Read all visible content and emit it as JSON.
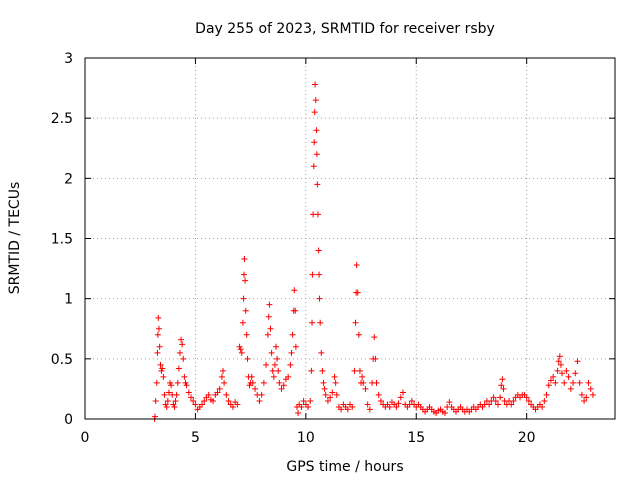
{
  "chart_data": {
    "type": "scatter",
    "title": "Day 255 of 2023, SRMTID for receiver rsby",
    "xlabel": "GPS time / hours",
    "ylabel": "SRMTID / TECUs",
    "xlim": [
      0,
      24
    ],
    "ylim": [
      0,
      3
    ],
    "x_ticks": [
      0,
      5,
      10,
      15,
      20
    ],
    "x_tick_labels": [
      "0",
      "5",
      "10",
      "15",
      "20"
    ],
    "y_ticks": [
      0,
      0.5,
      1,
      1.5,
      2,
      2.5,
      3
    ],
    "y_tick_labels": [
      "0",
      "0.5",
      "1",
      "1.5",
      "2",
      "2.5",
      "3"
    ],
    "grid": true,
    "marker": "plus",
    "series": [
      {
        "name": "SRMTID",
        "color": "#ff0000",
        "points": [
          [
            3.15,
            0.0
          ],
          [
            3.17,
            0.02
          ],
          [
            3.2,
            0.15
          ],
          [
            3.25,
            0.3
          ],
          [
            3.28,
            0.55
          ],
          [
            3.3,
            0.7
          ],
          [
            3.32,
            0.84
          ],
          [
            3.35,
            0.75
          ],
          [
            3.38,
            0.6
          ],
          [
            3.42,
            0.45
          ],
          [
            3.46,
            0.4
          ],
          [
            3.5,
            0.42
          ],
          [
            3.55,
            0.35
          ],
          [
            3.6,
            0.2
          ],
          [
            3.65,
            0.12
          ],
          [
            3.7,
            0.1
          ],
          [
            3.75,
            0.15
          ],
          [
            3.8,
            0.22
          ],
          [
            3.85,
            0.3
          ],
          [
            3.9,
            0.28
          ],
          [
            3.95,
            0.2
          ],
          [
            4.0,
            0.12
          ],
          [
            4.05,
            0.1
          ],
          [
            4.1,
            0.15
          ],
          [
            4.15,
            0.2
          ],
          [
            4.2,
            0.3
          ],
          [
            4.25,
            0.42
          ],
          [
            4.3,
            0.55
          ],
          [
            4.35,
            0.66
          ],
          [
            4.4,
            0.62
          ],
          [
            4.45,
            0.5
          ],
          [
            4.5,
            0.35
          ],
          [
            4.55,
            0.3
          ],
          [
            4.6,
            0.28
          ],
          [
            4.7,
            0.22
          ],
          [
            4.8,
            0.18
          ],
          [
            4.9,
            0.15
          ],
          [
            5.0,
            0.12
          ],
          [
            5.1,
            0.08
          ],
          [
            5.2,
            0.1
          ],
          [
            5.3,
            0.12
          ],
          [
            5.4,
            0.15
          ],
          [
            5.5,
            0.18
          ],
          [
            5.6,
            0.2
          ],
          [
            5.7,
            0.16
          ],
          [
            5.8,
            0.15
          ],
          [
            5.9,
            0.2
          ],
          [
            6.0,
            0.22
          ],
          [
            6.1,
            0.25
          ],
          [
            6.2,
            0.35
          ],
          [
            6.25,
            0.4
          ],
          [
            6.3,
            0.3
          ],
          [
            6.4,
            0.2
          ],
          [
            6.5,
            0.15
          ],
          [
            6.6,
            0.12
          ],
          [
            6.7,
            0.1
          ],
          [
            6.8,
            0.14
          ],
          [
            6.9,
            0.12
          ],
          [
            7.0,
            0.6
          ],
          [
            7.05,
            0.58
          ],
          [
            7.1,
            0.55
          ],
          [
            7.15,
            0.8
          ],
          [
            7.18,
            1.0
          ],
          [
            7.2,
            1.2
          ],
          [
            7.22,
            1.33
          ],
          [
            7.25,
            1.15
          ],
          [
            7.28,
            0.9
          ],
          [
            7.32,
            0.7
          ],
          [
            7.36,
            0.5
          ],
          [
            7.4,
            0.35
          ],
          [
            7.45,
            0.28
          ],
          [
            7.5,
            0.3
          ],
          [
            7.55,
            0.35
          ],
          [
            7.6,
            0.3
          ],
          [
            7.7,
            0.25
          ],
          [
            7.8,
            0.2
          ],
          [
            7.9,
            0.15
          ],
          [
            8.0,
            0.2
          ],
          [
            8.1,
            0.3
          ],
          [
            8.2,
            0.45
          ],
          [
            8.28,
            0.7
          ],
          [
            8.32,
            0.85
          ],
          [
            8.35,
            0.95
          ],
          [
            8.4,
            0.75
          ],
          [
            8.45,
            0.55
          ],
          [
            8.5,
            0.4
          ],
          [
            8.55,
            0.35
          ],
          [
            8.6,
            0.45
          ],
          [
            8.65,
            0.6
          ],
          [
            8.7,
            0.5
          ],
          [
            8.75,
            0.4
          ],
          [
            8.8,
            0.3
          ],
          [
            8.9,
            0.25
          ],
          [
            9.0,
            0.28
          ],
          [
            9.1,
            0.33
          ],
          [
            9.2,
            0.35
          ],
          [
            9.3,
            0.45
          ],
          [
            9.35,
            0.55
          ],
          [
            9.4,
            0.7
          ],
          [
            9.45,
            0.9
          ],
          [
            9.48,
            1.07
          ],
          [
            9.52,
            0.9
          ],
          [
            9.55,
            0.6
          ],
          [
            9.6,
            0.1
          ],
          [
            9.65,
            0.05
          ],
          [
            9.7,
            0.12
          ],
          [
            9.8,
            0.1
          ],
          [
            9.9,
            0.15
          ],
          [
            10.0,
            0.12
          ],
          [
            10.1,
            0.1
          ],
          [
            10.2,
            0.15
          ],
          [
            10.25,
            0.4
          ],
          [
            10.28,
            0.8
          ],
          [
            10.3,
            1.2
          ],
          [
            10.33,
            1.7
          ],
          [
            10.36,
            2.1
          ],
          [
            10.38,
            2.3
          ],
          [
            10.4,
            2.55
          ],
          [
            10.42,
            2.78
          ],
          [
            10.45,
            2.65
          ],
          [
            10.48,
            2.4
          ],
          [
            10.5,
            2.2
          ],
          [
            10.52,
            1.95
          ],
          [
            10.55,
            1.7
          ],
          [
            10.58,
            1.4
          ],
          [
            10.6,
            1.2
          ],
          [
            10.62,
            1.0
          ],
          [
            10.65,
            0.8
          ],
          [
            10.7,
            0.55
          ],
          [
            10.75,
            0.4
          ],
          [
            10.8,
            0.3
          ],
          [
            10.85,
            0.25
          ],
          [
            10.9,
            0.2
          ],
          [
            11.0,
            0.15
          ],
          [
            11.1,
            0.18
          ],
          [
            11.2,
            0.22
          ],
          [
            11.3,
            0.35
          ],
          [
            11.35,
            0.3
          ],
          [
            11.4,
            0.2
          ],
          [
            11.5,
            0.1
          ],
          [
            11.6,
            0.08
          ],
          [
            11.7,
            0.12
          ],
          [
            11.8,
            0.1
          ],
          [
            11.9,
            0.08
          ],
          [
            12.0,
            0.12
          ],
          [
            12.1,
            0.1
          ],
          [
            12.2,
            0.4
          ],
          [
            12.25,
            0.8
          ],
          [
            12.28,
            1.05
          ],
          [
            12.3,
            1.28
          ],
          [
            12.35,
            1.05
          ],
          [
            12.4,
            0.7
          ],
          [
            12.45,
            0.4
          ],
          [
            12.5,
            0.3
          ],
          [
            12.55,
            0.35
          ],
          [
            12.6,
            0.3
          ],
          [
            12.7,
            0.25
          ],
          [
            12.8,
            0.12
          ],
          [
            12.9,
            0.08
          ],
          [
            13.0,
            0.3
          ],
          [
            13.05,
            0.5
          ],
          [
            13.1,
            0.68
          ],
          [
            13.15,
            0.5
          ],
          [
            13.2,
            0.3
          ],
          [
            13.3,
            0.2
          ],
          [
            13.4,
            0.15
          ],
          [
            13.5,
            0.12
          ],
          [
            13.6,
            0.1
          ],
          [
            13.7,
            0.12
          ],
          [
            13.8,
            0.1
          ],
          [
            13.9,
            0.14
          ],
          [
            14.0,
            0.12
          ],
          [
            14.1,
            0.1
          ],
          [
            14.2,
            0.13
          ],
          [
            14.3,
            0.18
          ],
          [
            14.4,
            0.22
          ],
          [
            14.5,
            0.12
          ],
          [
            14.6,
            0.1
          ],
          [
            14.7,
            0.12
          ],
          [
            14.8,
            0.15
          ],
          [
            14.9,
            0.12
          ],
          [
            15.0,
            0.1
          ],
          [
            15.1,
            0.12
          ],
          [
            15.2,
            0.1
          ],
          [
            15.3,
            0.08
          ],
          [
            15.4,
            0.06
          ],
          [
            15.5,
            0.08
          ],
          [
            15.6,
            0.1
          ],
          [
            15.7,
            0.08
          ],
          [
            15.8,
            0.06
          ],
          [
            15.9,
            0.05
          ],
          [
            16.0,
            0.07
          ],
          [
            16.1,
            0.08
          ],
          [
            16.2,
            0.06
          ],
          [
            16.3,
            0.05
          ],
          [
            16.4,
            0.1
          ],
          [
            16.5,
            0.14
          ],
          [
            16.6,
            0.1
          ],
          [
            16.7,
            0.08
          ],
          [
            16.8,
            0.06
          ],
          [
            16.9,
            0.08
          ],
          [
            17.0,
            0.1
          ],
          [
            17.1,
            0.08
          ],
          [
            17.2,
            0.06
          ],
          [
            17.3,
            0.08
          ],
          [
            17.4,
            0.06
          ],
          [
            17.5,
            0.08
          ],
          [
            17.6,
            0.1
          ],
          [
            17.7,
            0.08
          ],
          [
            17.8,
            0.1
          ],
          [
            17.9,
            0.12
          ],
          [
            18.0,
            0.1
          ],
          [
            18.1,
            0.12
          ],
          [
            18.2,
            0.15
          ],
          [
            18.3,
            0.12
          ],
          [
            18.4,
            0.15
          ],
          [
            18.5,
            0.18
          ],
          [
            18.6,
            0.15
          ],
          [
            18.7,
            0.12
          ],
          [
            18.8,
            0.18
          ],
          [
            18.85,
            0.28
          ],
          [
            18.9,
            0.33
          ],
          [
            18.95,
            0.25
          ],
          [
            19.0,
            0.15
          ],
          [
            19.1,
            0.12
          ],
          [
            19.2,
            0.15
          ],
          [
            19.3,
            0.12
          ],
          [
            19.4,
            0.15
          ],
          [
            19.5,
            0.18
          ],
          [
            19.6,
            0.2
          ],
          [
            19.7,
            0.18
          ],
          [
            19.8,
            0.2
          ],
          [
            19.9,
            0.2
          ],
          [
            20.0,
            0.18
          ],
          [
            20.1,
            0.15
          ],
          [
            20.2,
            0.12
          ],
          [
            20.3,
            0.1
          ],
          [
            20.4,
            0.08
          ],
          [
            20.5,
            0.1
          ],
          [
            20.6,
            0.12
          ],
          [
            20.7,
            0.1
          ],
          [
            20.8,
            0.15
          ],
          [
            20.9,
            0.2
          ],
          [
            21.0,
            0.28
          ],
          [
            21.1,
            0.32
          ],
          [
            21.2,
            0.35
          ],
          [
            21.3,
            0.3
          ],
          [
            21.4,
            0.4
          ],
          [
            21.45,
            0.48
          ],
          [
            21.5,
            0.52
          ],
          [
            21.55,
            0.45
          ],
          [
            21.6,
            0.38
          ],
          [
            21.7,
            0.3
          ],
          [
            21.8,
            0.4
          ],
          [
            21.9,
            0.35
          ],
          [
            22.0,
            0.25
          ],
          [
            22.1,
            0.3
          ],
          [
            22.2,
            0.38
          ],
          [
            22.3,
            0.48
          ],
          [
            22.4,
            0.3
          ],
          [
            22.5,
            0.2
          ],
          [
            22.6,
            0.15
          ],
          [
            22.7,
            0.18
          ],
          [
            22.8,
            0.3
          ],
          [
            22.9,
            0.25
          ],
          [
            23.0,
            0.2
          ]
        ]
      }
    ]
  }
}
